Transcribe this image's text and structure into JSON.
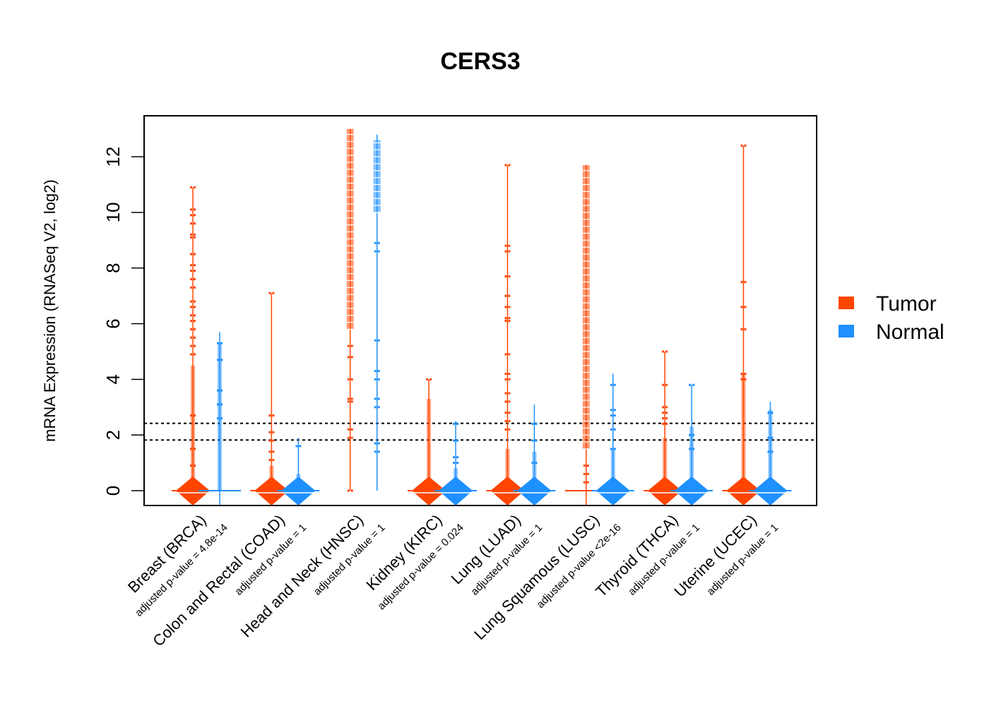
{
  "chart_data": {
    "type": "scatter",
    "subtype": "beeswarm",
    "title": "CERS3",
    "xlabel": "",
    "ylabel": "mRNA Expression (RNASeq V2, log2)",
    "ylim": [
      -0.5,
      13.5
    ],
    "yticks": [
      0,
      2,
      4,
      6,
      8,
      10,
      12
    ],
    "reference_lines": [
      {
        "y": 2.42,
        "style": "dotted",
        "color": "#000000"
      },
      {
        "y": 1.82,
        "style": "dotted",
        "color": "#000000"
      }
    ],
    "legend": {
      "placement": "right",
      "entries": [
        {
          "label": "Tumor",
          "color": "#FF4500"
        },
        {
          "label": "Normal",
          "color": "#1E90FF"
        }
      ]
    },
    "categories": [
      {
        "name": "Breast (BRCA)",
        "pvalue_label": "adjusted p-value = 4.8e-14",
        "tumor": {
          "max": 10.9,
          "dense_max": 4.5,
          "mass_at_zero": "high",
          "outliers": [
            10.9,
            10.1,
            9.9,
            9.6,
            9.2,
            9.1,
            8.5,
            8.1,
            7.9,
            7.6,
            7.3,
            6.8,
            6.6,
            6.3,
            6.1,
            5.8,
            5.5,
            5.2,
            4.9,
            2.7,
            1.5,
            0.9
          ]
        },
        "normal": {
          "max": 5.7,
          "dense_max": 5.3,
          "mass_at_zero": "low",
          "outliers": [
            5.3,
            4.7,
            3.6,
            3.1,
            2.6
          ]
        }
      },
      {
        "name": "Colon and Rectal (COAD)",
        "pvalue_label": "adjusted p-value = 1",
        "tumor": {
          "max": 7.1,
          "dense_max": 0.9,
          "mass_at_zero": "high",
          "outliers": [
            7.1,
            2.7,
            2.1,
            1.8,
            1.4,
            1.1
          ]
        },
        "normal": {
          "max": 1.9,
          "dense_max": 0.6,
          "mass_at_zero": "high",
          "outliers": [
            1.6
          ]
        }
      },
      {
        "name": "Head and Neck (HNSC)",
        "pvalue_label": "adjusted p-value = 1",
        "tumor": {
          "max": 13.0,
          "dense_min": 5.8,
          "dense_max": 13.0,
          "mass_at_zero": "none",
          "outliers": [
            5.2,
            4.8,
            4.0,
            3.3,
            3.2,
            2.2,
            1.9,
            0.0
          ]
        },
        "normal": {
          "max": 12.8,
          "dense_min": 10.0,
          "dense_max": 12.6,
          "mass_at_zero": "none",
          "outliers": [
            8.9,
            8.6,
            5.4,
            4.3,
            4.0,
            3.3,
            3.0,
            1.7,
            1.4
          ]
        }
      },
      {
        "name": "Kidney (KIRC)",
        "pvalue_label": "adjusted p-value = 0.024",
        "tumor": {
          "max": 4.0,
          "dense_max": 3.3,
          "mass_at_zero": "high",
          "outliers": [
            4.0
          ]
        },
        "normal": {
          "max": 2.5,
          "dense_max": 0.8,
          "mass_at_zero": "high",
          "outliers": [
            2.4,
            1.8,
            1.2,
            1.0
          ]
        }
      },
      {
        "name": "Lung (LUAD)",
        "pvalue_label": "adjusted p-value = 1",
        "tumor": {
          "max": 11.7,
          "dense_max": 1.5,
          "mass_at_zero": "high",
          "outliers": [
            11.7,
            8.8,
            8.6,
            7.7,
            7.0,
            6.6,
            6.2,
            6.1,
            4.9,
            4.2,
            4.0,
            3.5,
            3.2,
            2.8,
            2.5,
            2.2
          ]
        },
        "normal": {
          "max": 3.1,
          "dense_max": 1.4,
          "mass_at_zero": "high",
          "outliers": [
            2.4,
            1.8,
            1.0
          ]
        }
      },
      {
        "name": "Lung Squamous (LUSC)",
        "pvalue_label": "adjusted p-value <2e-16",
        "tumor": {
          "max": 11.7,
          "dense_min": 1.5,
          "dense_max": 11.7,
          "mass_at_zero": "low",
          "outliers": [
            0.9,
            0.6,
            0.3
          ]
        },
        "normal": {
          "max": 4.2,
          "dense_max": 1.5,
          "mass_at_zero": "high",
          "outliers": [
            3.8,
            2.9,
            2.7,
            2.2,
            1.5
          ]
        }
      },
      {
        "name": "Thyroid (THCA)",
        "pvalue_label": "adjusted p-value = 1",
        "tumor": {
          "max": 5.0,
          "dense_max": 1.9,
          "mass_at_zero": "high",
          "outliers": [
            5.0,
            3.8,
            3.0,
            2.8,
            2.6,
            2.4
          ]
        },
        "normal": {
          "max": 3.8,
          "dense_max": 2.3,
          "mass_at_zero": "high",
          "outliers": [
            3.8,
            2.0,
            1.5
          ]
        }
      },
      {
        "name": "Uterine (UCEC)",
        "pvalue_label": "adjusted p-value = 1",
        "tumor": {
          "max": 12.4,
          "dense_max": 4.2,
          "mass_at_zero": "high",
          "outliers": [
            12.4,
            7.5,
            6.6,
            5.8,
            4.2,
            4.0
          ]
        },
        "normal": {
          "max": 3.2,
          "dense_max": 2.9,
          "mass_at_zero": "high",
          "outliers": [
            2.8,
            1.9,
            1.4
          ]
        }
      }
    ]
  }
}
